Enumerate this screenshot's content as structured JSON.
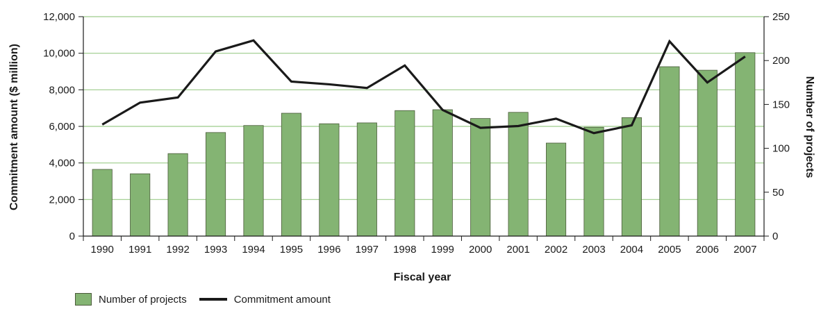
{
  "chart_data": {
    "type": "bar",
    "categories": [
      "1990",
      "1991",
      "1992",
      "1993",
      "1994",
      "1995",
      "1996",
      "1997",
      "1998",
      "1999",
      "2000",
      "2001",
      "2002",
      "2003",
      "2004",
      "2005",
      "2006",
      "2007"
    ],
    "series": [
      {
        "name": "Number of projects",
        "type": "bar",
        "axis": "right",
        "color": "#84b473",
        "values": [
          76,
          71,
          94,
          118,
          126,
          140,
          128,
          129,
          143,
          144,
          134,
          141,
          106,
          124,
          135,
          193,
          189,
          209
        ]
      },
      {
        "name": "Commitment amount",
        "type": "line",
        "axis": "left",
        "color": "#1a1a1a",
        "values": [
          6100,
          7300,
          7580,
          10100,
          10700,
          8450,
          8300,
          8100,
          9330,
          6900,
          5920,
          6020,
          6420,
          5630,
          6060,
          10650,
          8400,
          9820
        ]
      }
    ],
    "xlabel": "Fiscal year",
    "ylabel": "Commitment amount ($ million)",
    "ylabel_right": "Number of projects",
    "ylim": [
      0,
      12000
    ],
    "ylim_right": [
      0,
      250
    ],
    "yticks": [
      0,
      2000,
      4000,
      6000,
      8000,
      10000,
      12000
    ],
    "yticks_right": [
      0,
      50,
      100,
      150,
      200,
      250
    ],
    "grid": true,
    "legend_position": "bottom-left"
  }
}
